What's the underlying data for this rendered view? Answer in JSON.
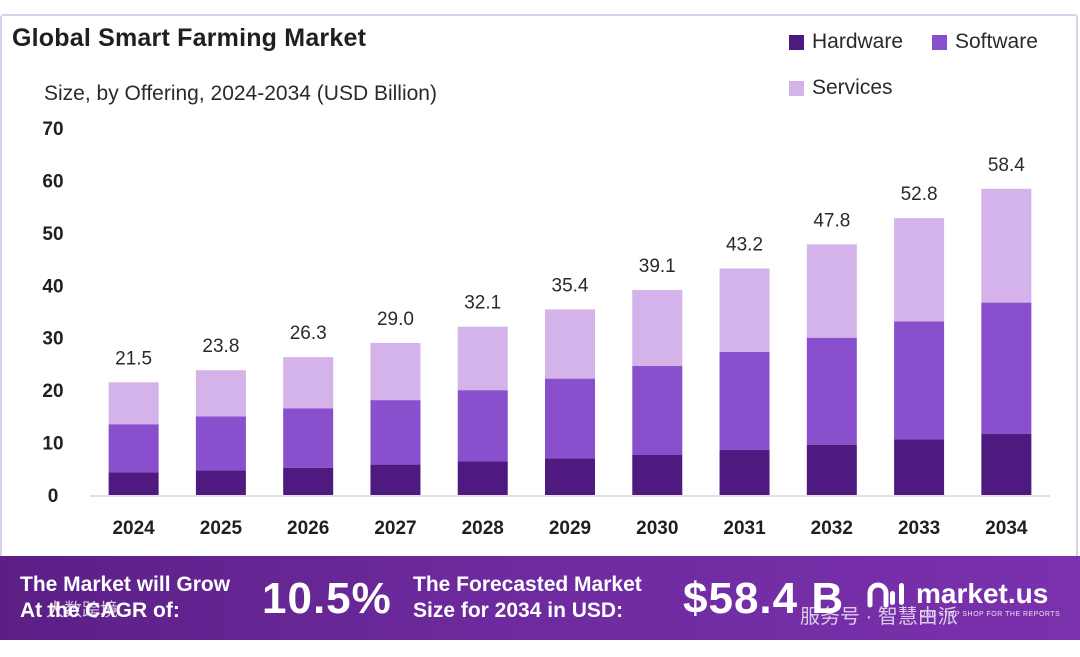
{
  "header": {
    "title": "Global Smart Farming Market",
    "subtitle": "Size, by Offering, 2024-2034 (USD Billion)"
  },
  "legend": [
    {
      "label": "Hardware",
      "color": "#4f1a80"
    },
    {
      "label": "Software",
      "color": "#8a4fcc"
    },
    {
      "label": "Services",
      "color": "#d4b2ea"
    }
  ],
  "chart_data": {
    "type": "bar",
    "stacked": true,
    "title": "Global Smart Farming Market",
    "subtitle": "Size, by Offering, 2024-2034 (USD Billion)",
    "categories": [
      "2024",
      "2025",
      "2026",
      "2027",
      "2028",
      "2029",
      "2030",
      "2031",
      "2032",
      "2033",
      "2034"
    ],
    "series": [
      {
        "name": "Hardware",
        "color": "#4f1a80",
        "values": [
          4.3,
          4.7,
          5.2,
          5.8,
          6.4,
          7.0,
          7.7,
          8.6,
          9.6,
          10.6,
          11.7
        ]
      },
      {
        "name": "Software",
        "color": "#8a4fcc",
        "values": [
          9.2,
          10.3,
          11.3,
          12.3,
          13.6,
          15.2,
          16.9,
          18.7,
          20.4,
          22.5,
          25.0
        ]
      },
      {
        "name": "Services",
        "color": "#d4b2ea",
        "values": [
          8.0,
          8.8,
          9.8,
          10.9,
          12.1,
          13.2,
          14.5,
          15.9,
          17.8,
          19.7,
          21.7
        ]
      }
    ],
    "totals": [
      "21.5",
      "23.8",
      "26.3",
      "29.0",
      "32.1",
      "35.4",
      "39.1",
      "43.2",
      "47.8",
      "52.8",
      "58.4"
    ],
    "ylim": [
      0,
      70
    ],
    "yticks": [
      "0",
      "10",
      "20",
      "30",
      "40",
      "50",
      "60",
      "70"
    ],
    "xlabel": "",
    "ylabel": "",
    "grid": false,
    "legend_position": "top-right"
  },
  "banner": {
    "cagr_label_line1": "The Market will Grow",
    "cagr_label_line2": "At the CAGR of:",
    "cagr_value": "10.5%",
    "forecast_label_line1": "The Forecasted Market",
    "forecast_label_line2": "Size for 2034 in USD:",
    "forecast_value": "$58.4 B",
    "brand": "market.us",
    "tagline": "ONE STOP SHOP FOR THE REPORTS"
  },
  "watermarks": {
    "left": "大数跨境",
    "right": "服务号 · 智慧由派"
  }
}
